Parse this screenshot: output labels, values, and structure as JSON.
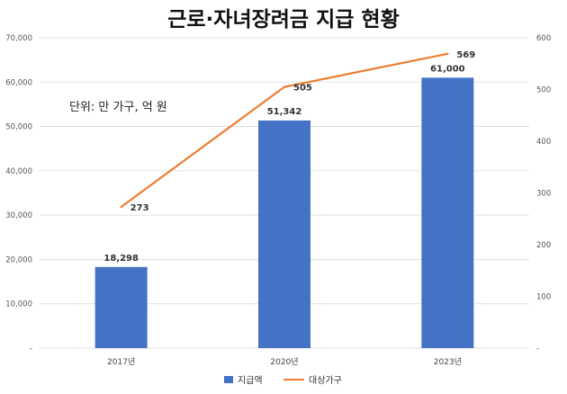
{
  "chart_data": {
    "type": "bar",
    "title": "근로·자녀장려금 지급 현황",
    "unit_note": "단위: 만 가구, 억 원",
    "categories": [
      "2017년",
      "2020년",
      "2023년"
    ],
    "series": [
      {
        "name": "지급액",
        "type": "bar",
        "axis": "left",
        "values": [
          18298,
          51342,
          61000
        ],
        "labels": [
          "18,298",
          "51,342",
          "61,000"
        ],
        "color": "#4472c4"
      },
      {
        "name": "대상가구",
        "type": "line",
        "axis": "right",
        "values": [
          273,
          505,
          569
        ],
        "labels": [
          "273",
          "505",
          "569"
        ],
        "color": "#ed7d31"
      }
    ],
    "y_left": {
      "min": 0,
      "max": 70000,
      "ticks": [
        0,
        10000,
        20000,
        30000,
        40000,
        50000,
        60000,
        70000
      ],
      "tick_labels": [
        "-",
        "10,000",
        "20,000",
        "30,000",
        "40,000",
        "50,000",
        "60,000",
        "70,000"
      ]
    },
    "y_right": {
      "min": 0,
      "max": 600,
      "ticks": [
        0,
        100,
        200,
        300,
        400,
        500,
        600
      ],
      "tick_labels": [
        "-",
        "100",
        "200",
        "300",
        "400",
        "500",
        "600"
      ]
    },
    "grid": true,
    "legend": "bottom"
  }
}
